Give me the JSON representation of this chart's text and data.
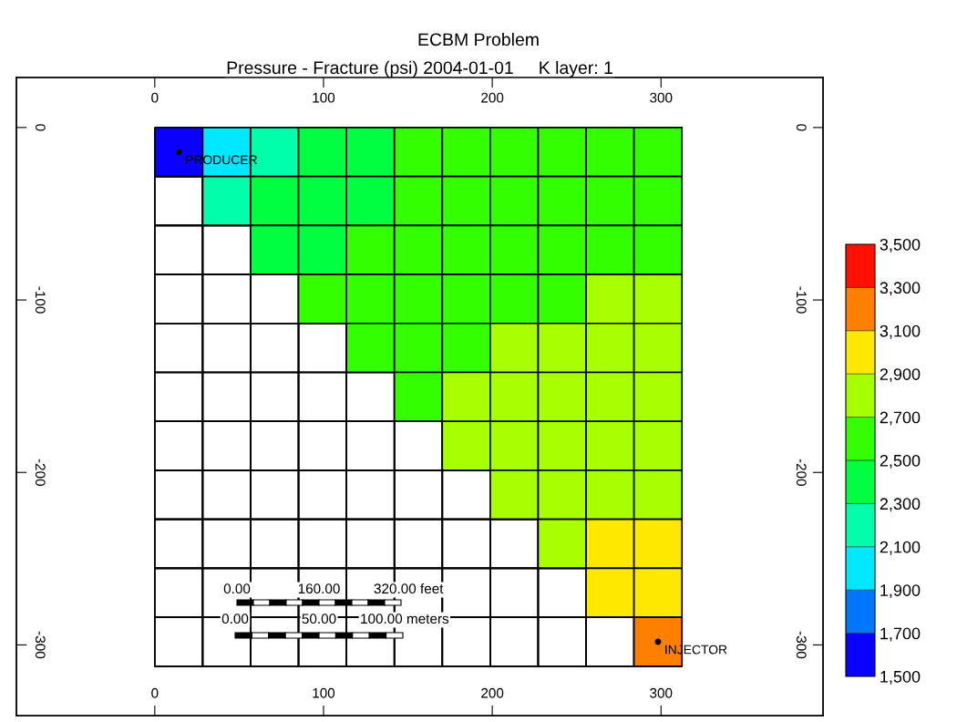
{
  "chart_data": {
    "type": "heatmap",
    "title": "ECBM Problem",
    "subtitle": "Pressure - Fracture (psi) 2004-01-01     K layer: 1",
    "x": [
      14.2,
      42.6,
      71.0,
      99.4,
      127.8,
      156.2,
      184.6,
      213.0,
      241.4,
      269.8,
      298.2
    ],
    "y": [
      -14.2,
      -42.6,
      -71.0,
      -99.4,
      -127.8,
      -156.2,
      -184.6,
      -213.0,
      -241.4,
      -269.8,
      -298.2
    ],
    "cells": [
      [
        1600,
        2000,
        2200,
        2400,
        2400,
        2600,
        2600,
        2600,
        2600,
        2600,
        2600
      ],
      [
        null,
        2200,
        2400,
        2400,
        2400,
        2600,
        2600,
        2600,
        2600,
        2600,
        2600
      ],
      [
        null,
        null,
        2400,
        2400,
        2600,
        2600,
        2600,
        2600,
        2600,
        2600,
        2600
      ],
      [
        null,
        null,
        null,
        2600,
        2600,
        2600,
        2600,
        2600,
        2600,
        2800,
        2800
      ],
      [
        null,
        null,
        null,
        null,
        2600,
        2600,
        2600,
        2800,
        2800,
        2800,
        2800
      ],
      [
        null,
        null,
        null,
        null,
        null,
        2600,
        2800,
        2800,
        2800,
        2800,
        2800
      ],
      [
        null,
        null,
        null,
        null,
        null,
        null,
        2800,
        2800,
        2800,
        2800,
        2800
      ],
      [
        null,
        null,
        null,
        null,
        null,
        null,
        null,
        2800,
        2800,
        2800,
        2800
      ],
      [
        null,
        null,
        null,
        null,
        null,
        null,
        null,
        null,
        2800,
        3000,
        3000
      ],
      [
        null,
        null,
        null,
        null,
        null,
        null,
        null,
        null,
        null,
        3000,
        3000
      ],
      [
        null,
        null,
        null,
        null,
        null,
        null,
        null,
        null,
        null,
        null,
        3200
      ]
    ],
    "clim": [
      1500,
      3500
    ],
    "cticks": [
      {
        "value": 1500,
        "label": "1,500"
      },
      {
        "value": 1700,
        "label": "1,700"
      },
      {
        "value": 1900,
        "label": "1,900"
      },
      {
        "value": 2100,
        "label": "2,100"
      },
      {
        "value": 2300,
        "label": "2,300"
      },
      {
        "value": 2500,
        "label": "2,500"
      },
      {
        "value": 2700,
        "label": "2,700"
      },
      {
        "value": 2900,
        "label": "2,900"
      },
      {
        "value": 3100,
        "label": "3,100"
      },
      {
        "value": 3300,
        "label": "3,300"
      },
      {
        "value": 3500,
        "label": "3,500"
      }
    ],
    "colors": [
      "#0a00ff",
      "#0077ff",
      "#00e8ff",
      "#00ffaa",
      "#00ff40",
      "#33ff00",
      "#a8ff00",
      "#ffe800",
      "#ff7f00",
      "#ff1000"
    ],
    "xlim": [
      -82,
      396
    ],
    "ylim": [
      -341,
      29
    ],
    "xticks": [
      0,
      100,
      200,
      300
    ],
    "yticks": [
      0,
      -100,
      -200,
      -300
    ],
    "x2lim": [
      -82,
      396
    ],
    "x2ticks": [
      0,
      100,
      200,
      300
    ],
    "y2lim": [
      -341,
      29
    ],
    "y2ticks": [
      0,
      -100,
      -200,
      -300
    ],
    "annotations": [
      {
        "text": "PRODUCER",
        "x": 14.2,
        "y": -14.2
      },
      {
        "text": "INJECTOR",
        "x": 298.2,
        "y": -298.2
      },
      "0.00",
      "160.00",
      "320.00 feet",
      "0.00",
      "50.00",
      "100.00 meters"
    ]
  }
}
